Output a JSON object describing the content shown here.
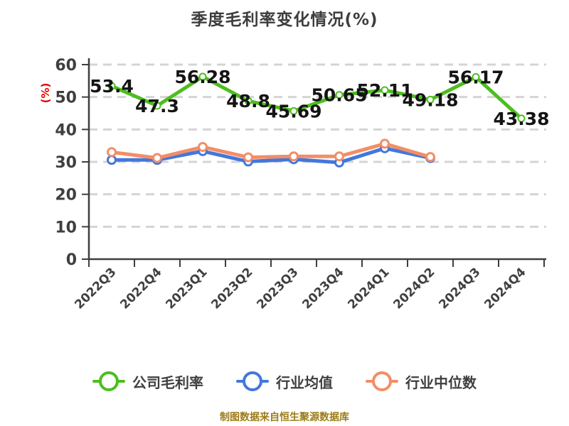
{
  "title": "季度毛利率变化情况(%)",
  "footer": "制图数据来自恒生聚源数据库",
  "colors": {
    "company_line": "#4cbe1e",
    "industry_mean_line": "#4377dd",
    "industry_median_line": "#f28e66",
    "axis": "#3f3f3f",
    "gridline": "#d4d4d4",
    "data_label": "#141414",
    "title_text": "#3d3d3d",
    "y_unit_text": "#e60000",
    "footer_text": "#9c7c17",
    "marker_fill": "#ffffff"
  },
  "chart_data": {
    "type": "line",
    "title": "季度毛利率变化情况(%)",
    "xlabel": "",
    "ylabel": "(%)",
    "ylim": [
      0,
      60
    ],
    "ytick_step": 10,
    "yticks": [
      0,
      10,
      20,
      30,
      40,
      50,
      60
    ],
    "grid": "horizontal-dashed",
    "legend_position": "bottom",
    "categories": [
      "2022Q3",
      "2022Q4",
      "2023Q1",
      "2023Q2",
      "2023Q3",
      "2023Q4",
      "2024Q1",
      "2024Q2",
      "2024Q3",
      "2024Q4"
    ],
    "series": [
      {
        "name": "公司毛利率",
        "color": "#4cbe1e",
        "show_value_labels": true,
        "values": [
          53.4,
          47.3,
          56.28,
          48.8,
          45.69,
          50.65,
          52.11,
          49.18,
          56.17,
          43.38
        ]
      },
      {
        "name": "行业均值",
        "color": "#4377dd",
        "show_value_labels": false,
        "values": [
          30.6,
          30.6,
          33.3,
          30.1,
          30.8,
          29.8,
          34.2,
          31.2
        ]
      },
      {
        "name": "行业中位数",
        "color": "#f28e66",
        "show_value_labels": false,
        "values": [
          33.0,
          31.2,
          34.6,
          31.4,
          31.7,
          31.7,
          35.6,
          31.5
        ]
      }
    ]
  }
}
